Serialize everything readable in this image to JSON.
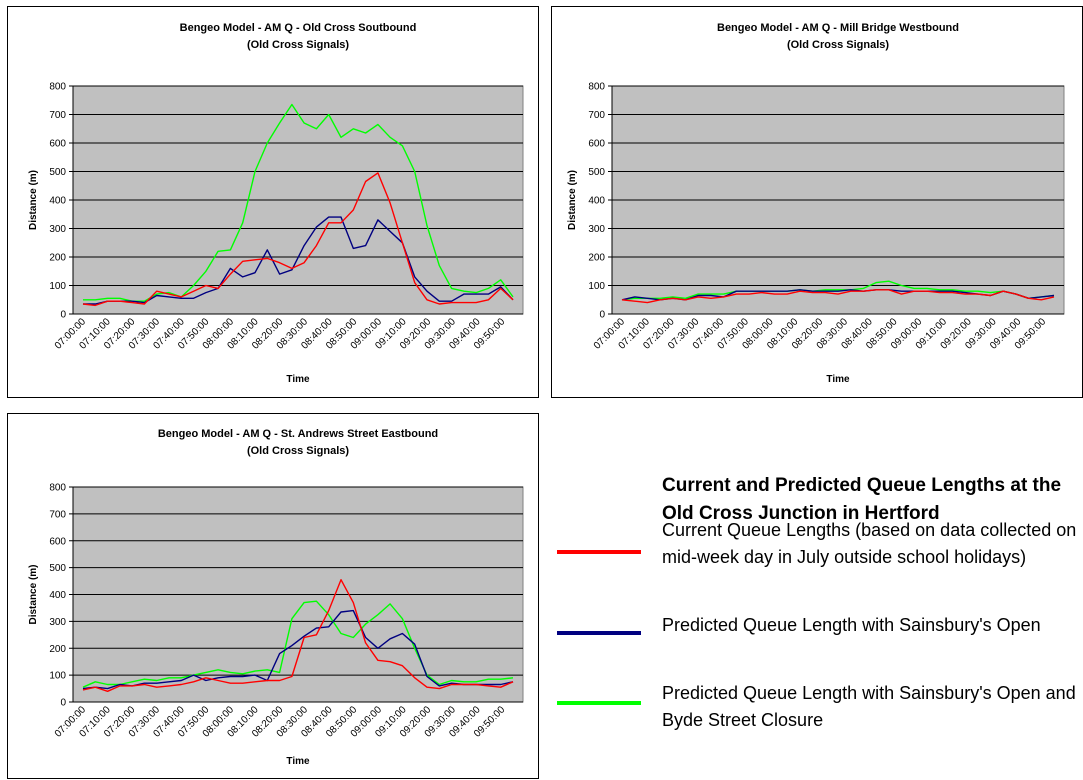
{
  "colors": {
    "current": "#ff0000",
    "sainsburys": "#000080",
    "closure": "#00ff00",
    "plot_background": "#c0c0c0"
  },
  "legend": {
    "title": "Current and Predicted Queue Lengths at the Old Cross Junction in Hertford",
    "items": [
      {
        "color": "#ff0000",
        "label": "Current Queue Lengths (based on data collected on mid-week day in July outside school holidays)"
      },
      {
        "color": "#000080",
        "label": "Predicted Queue Length with Sainsbury's Open"
      },
      {
        "color": "#00ff00",
        "label": "Predicted Queue Length with Sainsbury's Open and Byde Street Closure"
      }
    ]
  },
  "chart_data": [
    {
      "type": "line",
      "title": "Bengeo Model - AM Q - Old Cross Soutbound",
      "subtitle": "(Old Cross Signals)",
      "xlabel": "Time",
      "ylabel": "Distance (m)",
      "ylim": [
        0,
        800
      ],
      "yticks": [
        0,
        100,
        200,
        300,
        400,
        500,
        600,
        700,
        800
      ],
      "grid": true,
      "x_tick_labels": [
        "07:00:00",
        "07:10:00",
        "07:20:00",
        "07:30:00",
        "07:40:00",
        "07:50:00",
        "08:00:00",
        "08:10:00",
        "08:20:00",
        "08:30:00",
        "08:40:00",
        "08:50:00",
        "09:00:00",
        "09:10:00",
        "09:20:00",
        "09:30:00",
        "09:40:00",
        "09:50:00"
      ],
      "series": [
        {
          "color": "#ff0000",
          "values": [
            35,
            30,
            45,
            45,
            40,
            35,
            80,
            70,
            60,
            80,
            100,
            90,
            140,
            185,
            190,
            195,
            180,
            160,
            180,
            240,
            320,
            320,
            365,
            465,
            495,
            390,
            250,
            110,
            50,
            35,
            40,
            40,
            40,
            50,
            90,
            50
          ]
        },
        {
          "color": "#000080",
          "values": [
            35,
            35,
            45,
            45,
            45,
            40,
            65,
            60,
            55,
            55,
            75,
            90,
            160,
            130,
            145,
            225,
            140,
            155,
            240,
            305,
            340,
            340,
            230,
            240,
            330,
            290,
            250,
            130,
            80,
            45,
            45,
            70,
            70,
            70,
            95,
            50
          ]
        },
        {
          "color": "#00ff00",
          "values": [
            50,
            50,
            55,
            55,
            45,
            45,
            70,
            75,
            60,
            100,
            150,
            220,
            225,
            320,
            500,
            600,
            670,
            735,
            670,
            650,
            700,
            620,
            650,
            635,
            665,
            620,
            590,
            500,
            310,
            170,
            90,
            80,
            75,
            90,
            120,
            60
          ]
        }
      ]
    },
    {
      "type": "line",
      "title": "Bengeo Model - AM Q - Mill Bridge Westbound",
      "subtitle": "(Old Cross Signals)",
      "xlabel": "Time",
      "ylabel": "Distance (m)",
      "ylim": [
        0,
        800
      ],
      "yticks": [
        0,
        100,
        200,
        300,
        400,
        500,
        600,
        700,
        800
      ],
      "grid": true,
      "x_tick_labels": [
        "07:00:00",
        "07:10:00",
        "07:20:00",
        "07:30:00",
        "07:40:00",
        "07:50:00",
        "08:00:00",
        "08:10:00",
        "08:20:00",
        "08:30:00",
        "08:40:00",
        "08:50:00",
        "09:00:00",
        "09:10:00",
        "09:20:00",
        "09:30:00",
        "09:40:00",
        "09:50:00"
      ],
      "series": [
        {
          "color": "#ff0000",
          "values": [
            50,
            45,
            40,
            50,
            55,
            50,
            60,
            55,
            60,
            70,
            70,
            75,
            70,
            70,
            80,
            75,
            75,
            70,
            80,
            80,
            85,
            85,
            70,
            80,
            80,
            75,
            75,
            70,
            70,
            65,
            80,
            70,
            55,
            50,
            60
          ]
        },
        {
          "color": "#000080",
          "values": [
            50,
            60,
            55,
            50,
            55,
            50,
            65,
            65,
            60,
            80,
            80,
            80,
            80,
            80,
            85,
            80,
            80,
            80,
            85,
            80,
            85,
            85,
            80,
            80,
            80,
            80,
            80,
            75,
            70,
            65,
            80,
            70,
            55,
            60,
            65
          ]
        },
        {
          "color": "#00ff00",
          "values": [
            50,
            55,
            55,
            55,
            60,
            55,
            70,
            70,
            70,
            80,
            80,
            80,
            80,
            80,
            85,
            80,
            85,
            85,
            85,
            90,
            110,
            115,
            100,
            90,
            90,
            85,
            85,
            80,
            80,
            75,
            80,
            70,
            55,
            60,
            65
          ]
        }
      ]
    },
    {
      "type": "line",
      "title": "Bengeo Model - AM Q - St. Andrews Street Eastbound",
      "subtitle": "(Old Cross Signals)",
      "xlabel": "Time",
      "ylabel": "Distance (m)",
      "ylim": [
        0,
        800
      ],
      "yticks": [
        0,
        100,
        200,
        300,
        400,
        500,
        600,
        700,
        800
      ],
      "grid": true,
      "x_tick_labels": [
        "07:00:00",
        "07:10:00",
        "07:20:00",
        "07:30:00",
        "07:40:00",
        "07:50:00",
        "08:00:00",
        "08:10:00",
        "08:20:00",
        "08:30:00",
        "08:40:00",
        "08:50:00",
        "09:00:00",
        "09:10:00",
        "09:20:00",
        "09:30:00",
        "09:40:00",
        "09:50:00"
      ],
      "series": [
        {
          "color": "#ff0000",
          "values": [
            45,
            55,
            40,
            60,
            60,
            65,
            55,
            60,
            65,
            75,
            90,
            80,
            70,
            70,
            75,
            80,
            80,
            95,
            240,
            250,
            340,
            455,
            370,
            220,
            155,
            150,
            135,
            90,
            55,
            50,
            65,
            65,
            65,
            60,
            55,
            75
          ]
        },
        {
          "color": "#000080",
          "values": [
            50,
            55,
            50,
            65,
            60,
            70,
            70,
            75,
            80,
            100,
            80,
            90,
            95,
            95,
            100,
            80,
            180,
            210,
            245,
            275,
            280,
            335,
            340,
            240,
            200,
            235,
            255,
            215,
            95,
            60,
            70,
            65,
            65,
            65,
            65,
            75
          ]
        },
        {
          "color": "#00ff00",
          "values": [
            55,
            75,
            65,
            65,
            75,
            85,
            80,
            90,
            90,
            100,
            110,
            120,
            110,
            105,
            115,
            120,
            110,
            310,
            370,
            375,
            325,
            255,
            240,
            290,
            325,
            365,
            310,
            200,
            100,
            65,
            80,
            75,
            75,
            85,
            85,
            90
          ]
        }
      ]
    }
  ]
}
